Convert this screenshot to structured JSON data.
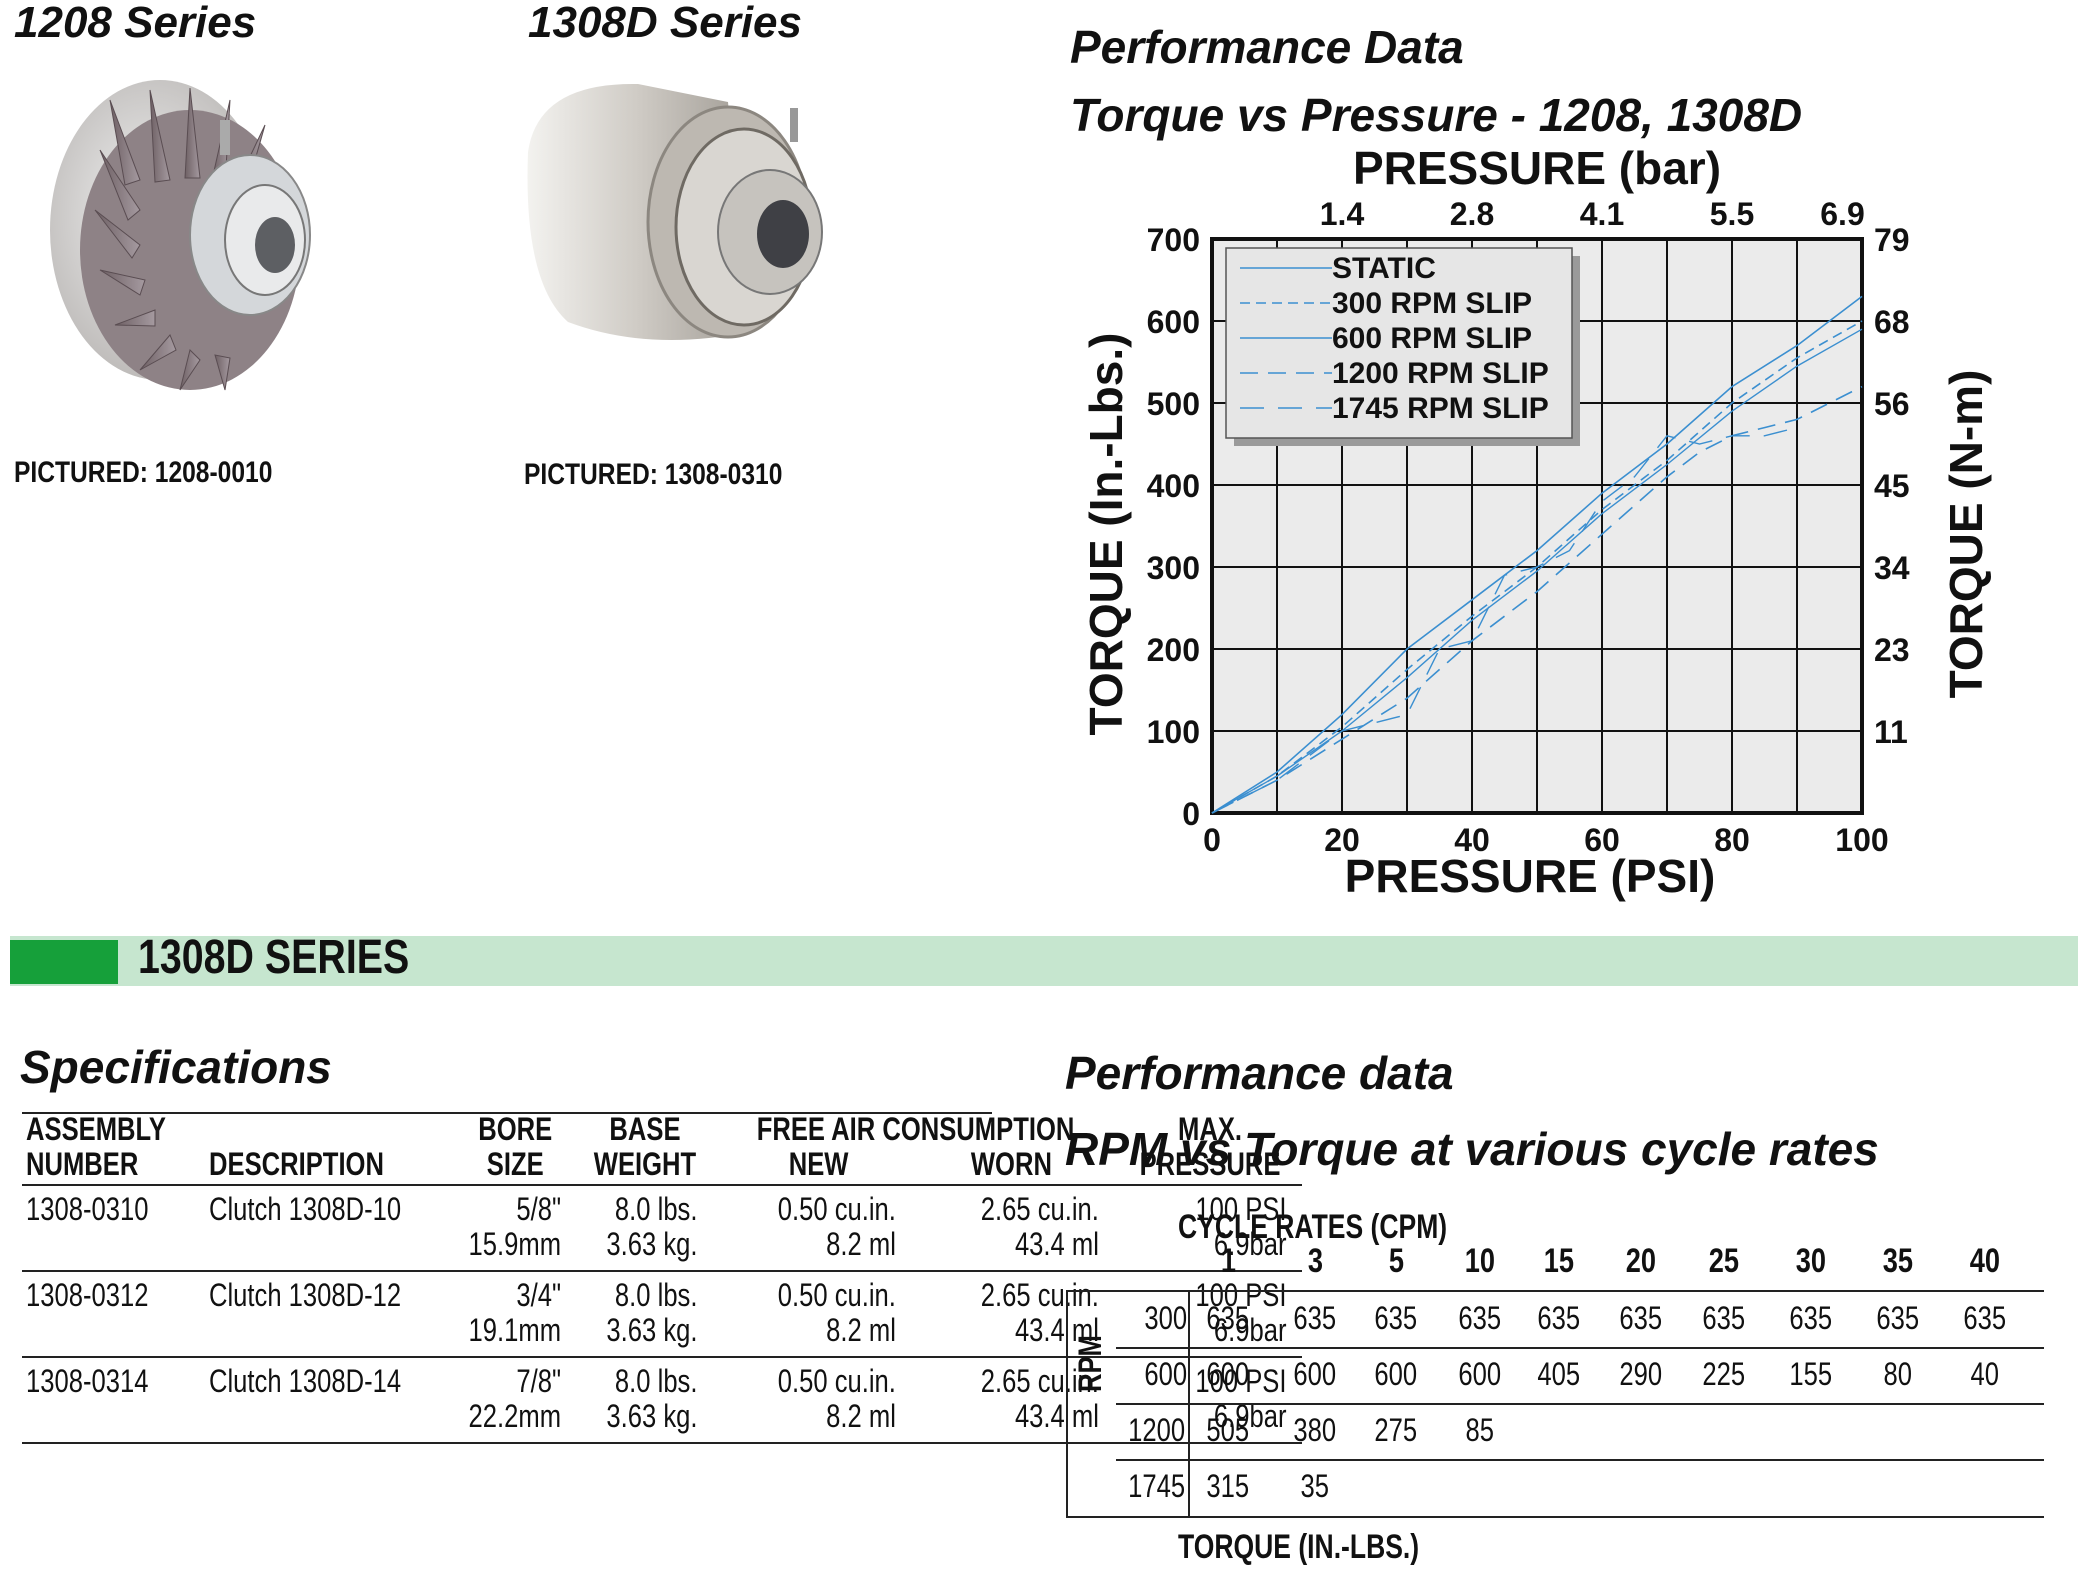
{
  "products": {
    "left": {
      "title": "1208 Series",
      "pictured": "PICTURED: 1208-0010"
    },
    "right": {
      "title": "1308D Series",
      "pictured": "PICTURED: 1308-0310"
    }
  },
  "performance_top": {
    "heading": "Performance Data",
    "subheading": "Torque vs Pressure - 1208, 1308D"
  },
  "chart_data": {
    "type": "line",
    "title": "Torque vs Pressure - 1208, 1308D",
    "xlabel": "PRESSURE (PSI)",
    "x2label": "PRESSURE (bar)",
    "ylabel": "TORQUE (In.-Lbs.)",
    "y2label": "TORQUE (N-m)",
    "xlim": [
      0,
      100
    ],
    "ylim": [
      0,
      700
    ],
    "x_ticks": [
      "0",
      "20",
      "40",
      "60",
      "80",
      "100"
    ],
    "y_ticks": [
      "0",
      "100",
      "200",
      "300",
      "400",
      "500",
      "600",
      "700"
    ],
    "x2_ticks": [
      "1.4",
      "2.8",
      "4.1",
      "5.5",
      "6.9"
    ],
    "y2_ticks": [
      "11",
      "23",
      "34",
      "45",
      "56",
      "68",
      "79"
    ],
    "grid": true,
    "legend": "top-left",
    "series": [
      {
        "name": "STATIC",
        "x": [
          0,
          10,
          20,
          30,
          40,
          50,
          60,
          70,
          80,
          90,
          100
        ],
        "y": [
          0,
          50,
          120,
          200,
          260,
          320,
          390,
          450,
          520,
          570,
          630
        ]
      },
      {
        "name": "300 RPM SLIP",
        "x": [
          0,
          10,
          20,
          30,
          40,
          50,
          60,
          70,
          80,
          90,
          100
        ],
        "y": [
          0,
          45,
          105,
          175,
          240,
          300,
          370,
          430,
          500,
          555,
          600
        ]
      },
      {
        "name": "600 RPM SLIP",
        "x": [
          0,
          10,
          20,
          30,
          40,
          50,
          60,
          70,
          80,
          90,
          100
        ],
        "y": [
          0,
          45,
          100,
          165,
          235,
          295,
          365,
          425,
          490,
          545,
          590
        ]
      },
      {
        "name": "1200 RPM SLIP",
        "x": [
          0,
          10,
          20,
          30,
          40,
          50,
          60,
          70,
          75,
          80,
          85,
          90,
          100
        ],
        "y": [
          0,
          40,
          90,
          140,
          210,
          270,
          340,
          410,
          440,
          460,
          470,
          480,
          520
        ]
      },
      {
        "name": "1745 RPM SLIP",
        "x": [
          0,
          10,
          20,
          25,
          30,
          35,
          40,
          45,
          50,
          55,
          60,
          65,
          70,
          75,
          80,
          85,
          90
        ],
        "y": [
          0,
          40,
          100,
          110,
          120,
          200,
          210,
          290,
          300,
          320,
          380,
          410,
          460,
          450,
          460,
          460,
          470
        ]
      }
    ]
  },
  "banner": {
    "title": "1308D SERIES"
  },
  "specifications": {
    "heading": "Specifications",
    "headers": {
      "assembly": [
        "ASSEMBLY",
        "NUMBER"
      ],
      "description": "DESCRIPTION",
      "bore": [
        "BORE",
        "SIZE"
      ],
      "base": [
        "BASE",
        "WEIGHT"
      ],
      "free_air": "FREE AIR CONSUMPTION",
      "new": "NEW",
      "worn": "WORN",
      "max": [
        "MAX.",
        "PRESSURE"
      ]
    },
    "rows": [
      {
        "assembly": "1308-0310",
        "description": "Clutch 1308D-10",
        "bore1": "5/8\"",
        "bore2": "15.9mm",
        "weight1": "8.0 lbs.",
        "weight2": "3.63 kg.",
        "new1": "0.50 cu.in.",
        "new2": "8.2 ml",
        "worn1": "2.65 cu.in.",
        "worn2": "43.4 ml",
        "max1": "100 PSI",
        "max2": "6.9bar"
      },
      {
        "assembly": "1308-0312",
        "description": "Clutch 1308D-12",
        "bore1": "3/4\"",
        "bore2": "19.1mm",
        "weight1": "8.0 lbs.",
        "weight2": "3.63 kg.",
        "new1": "0.50 cu.in.",
        "new2": "8.2 ml",
        "worn1": "2.65 cu.in.",
        "worn2": "43.4 ml",
        "max1": "100 PSI",
        "max2": "6.9bar"
      },
      {
        "assembly": "1308-0314",
        "description": "Clutch 1308D-14",
        "bore1": "7/8\"",
        "bore2": "22.2mm",
        "weight1": "8.0 lbs.",
        "weight2": "3.63 kg.",
        "new1": "0.50 cu.in.",
        "new2": "8.2 ml",
        "worn1": "2.65 cu.in.",
        "worn2": "43.4 ml",
        "max1": "100 PSI",
        "max2": "6.9bar"
      }
    ]
  },
  "performance_bottom": {
    "heading": "Performance data",
    "subheading": "RPM vs Torque at various cycle rates",
    "cycle_label": "CYCLE RATES (CPM)",
    "rpm_label": "RPM",
    "torque_label": "TORQUE (IN.-LBS.)",
    "cycle_rates": [
      "1",
      "3",
      "5",
      "10",
      "15",
      "20",
      "25",
      "30",
      "35",
      "40"
    ],
    "rows": [
      {
        "rpm": "300",
        "values": [
          "635",
          "635",
          "635",
          "635",
          "635",
          "635",
          "635",
          "635",
          "635",
          "635"
        ]
      },
      {
        "rpm": "600",
        "values": [
          "600",
          "600",
          "600",
          "600",
          "405",
          "290",
          "225",
          "155",
          "80",
          "40"
        ]
      },
      {
        "rpm": "1200",
        "values": [
          "505",
          "380",
          "275",
          "85",
          "",
          "",
          "",
          "",
          "",
          ""
        ]
      },
      {
        "rpm": "1745",
        "values": [
          "315",
          "35",
          "",
          "",
          "",
          "",
          "",
          "",
          "",
          ""
        ]
      }
    ]
  }
}
